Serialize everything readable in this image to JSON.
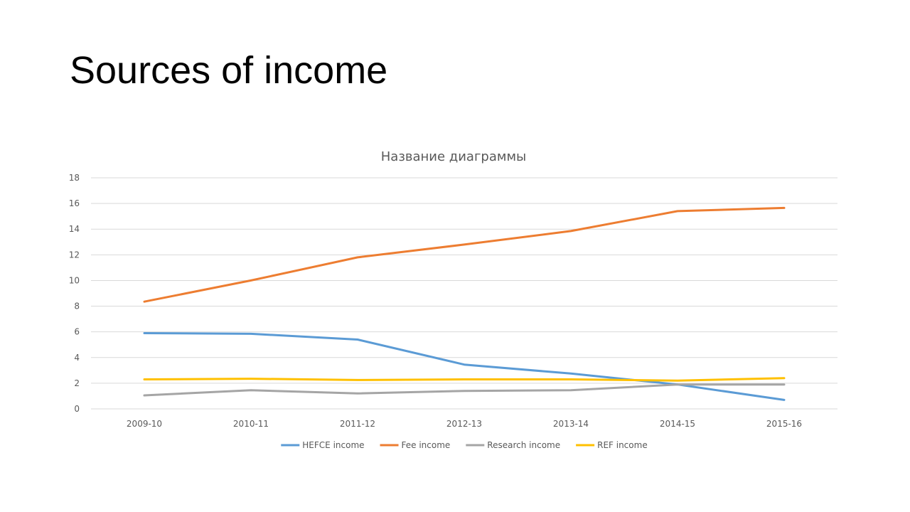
{
  "slide": {
    "title": "Sources of income"
  },
  "chart_data": {
    "type": "line",
    "title": "Название диаграммы",
    "xlabel": "",
    "ylabel": "",
    "ylim": [
      0,
      18
    ],
    "yticks": [
      0,
      2,
      4,
      6,
      8,
      10,
      12,
      14,
      16,
      18
    ],
    "categories": [
      "2009-10",
      "2010-11",
      "2011-12",
      "2012-13",
      "2013-14",
      "2014-15",
      "2015-16"
    ],
    "grid": true,
    "legend_position": "bottom",
    "series": [
      {
        "name": "HEFCE income",
        "color": "#5B9BD5",
        "values": [
          5.9,
          5.85,
          5.4,
          3.45,
          2.75,
          1.9,
          0.7
        ]
      },
      {
        "name": "Fee income",
        "color": "#ED7D31",
        "values": [
          8.35,
          10.0,
          11.8,
          12.8,
          13.85,
          15.4,
          15.65
        ]
      },
      {
        "name": "Research income",
        "color": "#A5A5A5",
        "values": [
          1.05,
          1.45,
          1.2,
          1.4,
          1.45,
          1.9,
          1.9
        ]
      },
      {
        "name": "REF income",
        "color": "#FFC000",
        "values": [
          2.3,
          2.35,
          2.25,
          2.3,
          2.3,
          2.2,
          2.4
        ]
      }
    ]
  }
}
